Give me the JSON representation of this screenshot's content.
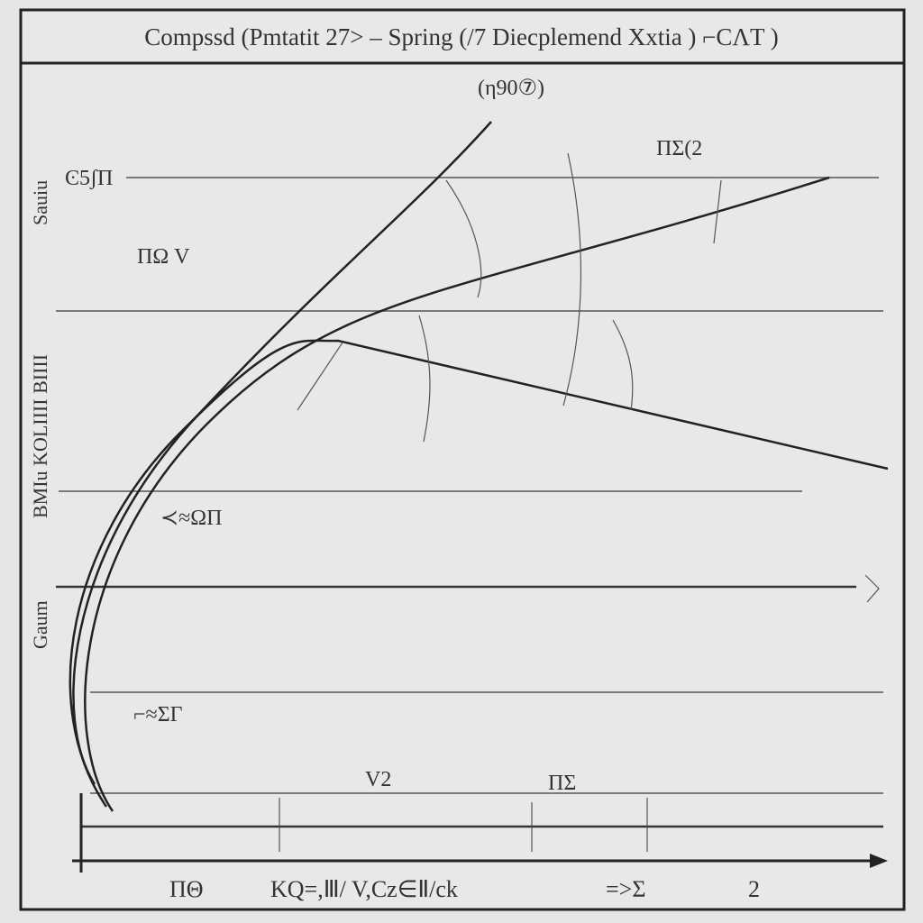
{
  "header": {
    "title": "Compssd (Pmtatit 27> – Spring (/7 Diecplemend Xxtia ) ⌐CΛT )"
  },
  "labels": {
    "top": "(η90⑦)",
    "top_right": "ΠΣ(2",
    "upper_left": "Ͼ5ʃΠ",
    "mid_left": "ΠΩ V",
    "lower_left": "≺≈ΩΠ",
    "bottom_left": "⌐≈ΣΓ",
    "bottom_mid": "V2",
    "bottom_right": "ΠΣ"
  },
  "side_labels": [
    "Sauiu",
    "BMIu KOLIIII BIIII",
    "Gaum"
  ],
  "axis_labels": [
    "ΠΘ",
    "KQ=,Ⅲ/ V,Cz∈Ⅱ/ck",
    "=>Σ",
    "2"
  ]
}
